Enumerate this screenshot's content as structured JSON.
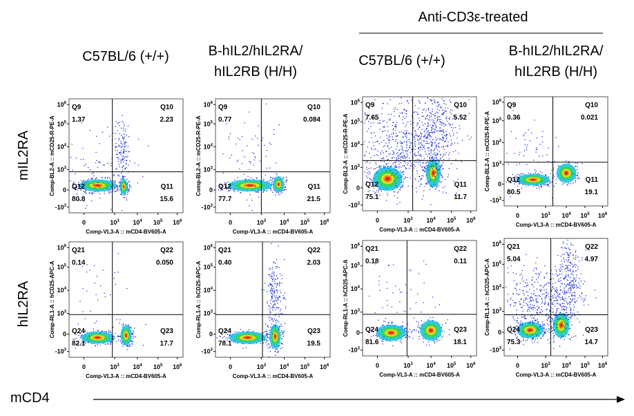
{
  "header": {
    "group_title": "Anti-CD3ε-treated"
  },
  "columns": [
    [
      "C57BL/6 (+/+)"
    ],
    [
      "B-hIL2/hIL2RA/",
      "hIL2RB (H/H)"
    ],
    [
      "C57BL/6 (+/+)"
    ],
    [
      "B-hIL2/hIL2RA/",
      "hIL2RB (H/H)"
    ]
  ],
  "rows": [
    {
      "label": "mIL2RA",
      "y_axis_label": "Comp-BL2-A :: mCD25-R-PE-A"
    },
    {
      "label": "hIL2RA",
      "y_axis_label": "Comp-RL1-A :: hCD25-APC-A"
    }
  ],
  "x_axis_label": "Comp-VL3-A :: mCD4-BV605-A",
  "y_ticks": [
    {
      "base": "10",
      "exp": "6"
    },
    {
      "base": "10",
      "exp": "5"
    },
    {
      "base": "10",
      "exp": "4"
    },
    {
      "base": "10",
      "exp": "3"
    },
    {
      "base": "0"
    },
    {
      "base": "-10",
      "exp": "3"
    }
  ],
  "x_ticks": [
    {
      "base": "0"
    },
    {
      "base": "10",
      "exp": "3"
    },
    {
      "base": "10",
      "exp": "4"
    },
    {
      "base": "10",
      "exp": "5"
    },
    {
      "base": "10",
      "exp": "6"
    }
  ],
  "footer": {
    "marker": "mCD4"
  },
  "panels": [
    {
      "quadrants": [
        {
          "name": "Q9",
          "value": "1.37"
        },
        {
          "name": "Q10",
          "value": "2.23"
        },
        {
          "name": "Q11",
          "value": "15.6"
        },
        {
          "name": "Q12",
          "value": "80.8"
        }
      ]
    },
    {
      "quadrants": [
        {
          "name": "Q9",
          "value": "0.77"
        },
        {
          "name": "Q10",
          "value": "0.084"
        },
        {
          "name": "Q11",
          "value": "21.5"
        },
        {
          "name": "Q12",
          "value": "77.7"
        }
      ]
    },
    {
      "quadrants": [
        {
          "name": "Q9",
          "value": "7.65"
        },
        {
          "name": "Q10",
          "value": "5.52"
        },
        {
          "name": "Q11",
          "value": "11.7"
        },
        {
          "name": "Q12",
          "value": "75.1"
        }
      ]
    },
    {
      "quadrants": [
        {
          "name": "Q9",
          "value": "0.36"
        },
        {
          "name": "Q10",
          "value": "0.021"
        },
        {
          "name": "Q11",
          "value": "19.1"
        },
        {
          "name": "Q12",
          "value": "80.5"
        }
      ]
    },
    {
      "quadrants": [
        {
          "name": "Q21",
          "value": "0.14"
        },
        {
          "name": "Q22",
          "value": "0.050"
        },
        {
          "name": "Q23",
          "value": "17.7"
        },
        {
          "name": "Q24",
          "value": "82.1"
        }
      ]
    },
    {
      "quadrants": [
        {
          "name": "Q21",
          "value": "0.40"
        },
        {
          "name": "Q22",
          "value": "2.03"
        },
        {
          "name": "Q23",
          "value": "19.5"
        },
        {
          "name": "Q24",
          "value": "78.1"
        }
      ]
    },
    {
      "quadrants": [
        {
          "name": "Q21",
          "value": "0.18"
        },
        {
          "name": "Q22",
          "value": "0.11"
        },
        {
          "name": "Q23",
          "value": "18.1"
        },
        {
          "name": "Q24",
          "value": "81.6"
        }
      ]
    },
    {
      "quadrants": [
        {
          "name": "Q21",
          "value": "5.04"
        },
        {
          "name": "Q22",
          "value": "4.97"
        },
        {
          "name": "Q23",
          "value": "14.7"
        },
        {
          "name": "Q24",
          "value": "75.3"
        }
      ]
    }
  ]
}
